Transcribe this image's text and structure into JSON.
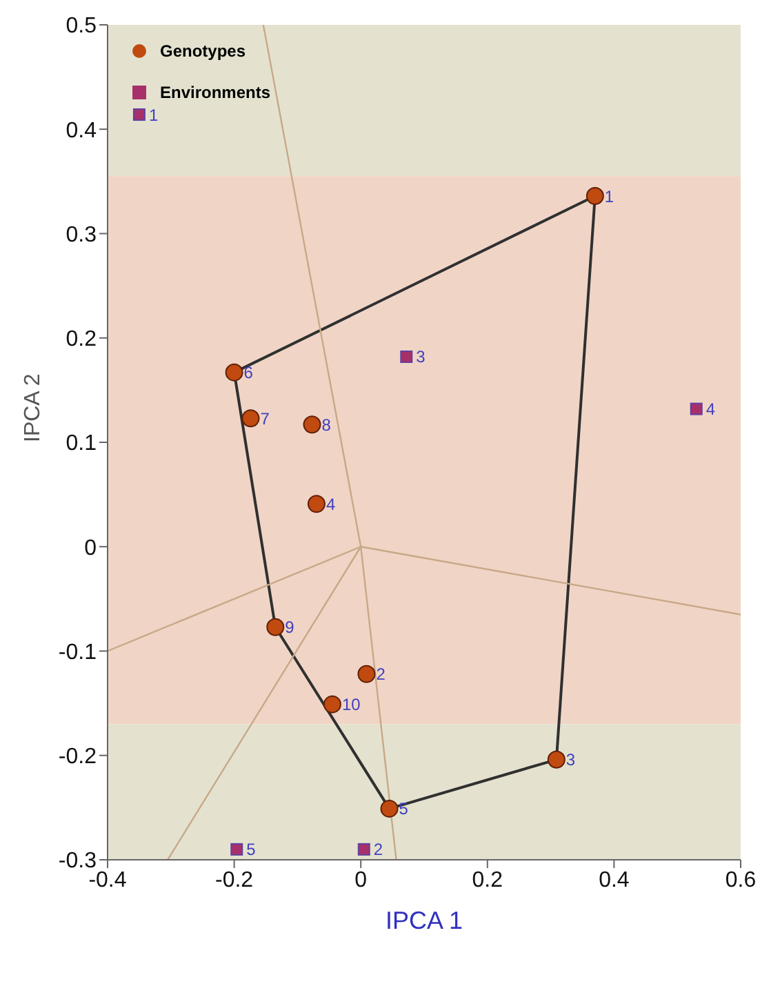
{
  "chart_data": {
    "type": "scatter",
    "xlabel": "IPCA 1",
    "ylabel": "IPCA 2",
    "xlim": [
      -0.4,
      0.6
    ],
    "xticks": [
      -0.4,
      -0.2,
      0,
      0.2,
      0.4,
      0.6
    ],
    "ylim": [
      -0.3,
      0.5
    ],
    "yticks": [
      -0.3,
      -0.2,
      -0.1,
      0,
      0.1,
      0.2,
      0.3,
      0.4,
      0.5
    ],
    "grid": false,
    "legend": "top left",
    "bands": [
      {
        "axis": "y",
        "from": 0.355,
        "to": 0.5,
        "color": "#e4e2cf"
      },
      {
        "axis": "y",
        "from": -0.17,
        "to": 0.355,
        "color": "#f0d5c6"
      },
      {
        "axis": "y",
        "from": -0.3,
        "to": -0.17,
        "color": "#e4e2cf"
      }
    ],
    "series": [
      {
        "name": "Genotypes",
        "marker": "circle",
        "color": "#c04a10",
        "x": [
          0.37,
          0.009,
          0.309,
          -0.07,
          0.045,
          -0.2,
          -0.174,
          -0.077,
          -0.135,
          -0.045
        ],
        "values": [
          0.336,
          -0.122,
          -0.204,
          0.041,
          -0.251,
          0.167,
          0.123,
          0.117,
          -0.077,
          -0.151
        ]
      },
      {
        "name": "Environments",
        "marker": "square",
        "color": "#a8306a",
        "x": [
          -0.35,
          0.005,
          0.072,
          0.53,
          -0.196
        ],
        "values": [
          0.414,
          -0.29,
          0.182,
          0.132,
          -0.29
        ]
      },
      {
        "type": "line",
        "color": "#303030",
        "marker": "none",
        "x": [
          -0.2,
          0.37
        ],
        "values": [
          0.167,
          0.336
        ]
      },
      {
        "type": "line",
        "color": "#303030",
        "marker": "none",
        "x": [
          -0.2,
          -0.135,
          0.045,
          0.309,
          0.37
        ],
        "values": [
          0.167,
          -0.077,
          -0.251,
          -0.204,
          0.336
        ]
      },
      {
        "type": "line",
        "color": "#c8a888",
        "marker": "none",
        "x": [
          -0.154,
          0,
          0.056
        ],
        "values": [
          0.5,
          0,
          -0.3
        ]
      },
      {
        "type": "line",
        "color": "#c8a888",
        "marker": "none",
        "x": [
          0,
          -0.4
        ],
        "values": [
          0,
          -0.1
        ]
      },
      {
        "type": "line",
        "color": "#c8a888",
        "marker": "none",
        "x": [
          0,
          0.6
        ],
        "values": [
          0,
          -0.065
        ]
      },
      {
        "type": "line",
        "color": "#c8a888",
        "marker": "none",
        "x": [
          0,
          -0.305
        ],
        "values": [
          0,
          -0.3
        ]
      }
    ],
    "annotations": [
      {
        "text": "1",
        "x": 0.37,
        "y": 0.336
      },
      {
        "text": "2",
        "x": 0.009,
        "y": -0.122
      },
      {
        "text": "3",
        "x": 0.309,
        "y": -0.204
      },
      {
        "text": "4",
        "x": -0.07,
        "y": 0.041
      },
      {
        "text": "5",
        "x": 0.045,
        "y": -0.251
      },
      {
        "text": "6",
        "x": -0.2,
        "y": 0.167
      },
      {
        "text": "7",
        "x": -0.174,
        "y": 0.123
      },
      {
        "text": "8",
        "x": -0.077,
        "y": 0.117
      },
      {
        "text": "9",
        "x": -0.135,
        "y": -0.077
      },
      {
        "text": "10",
        "x": -0.045,
        "y": -0.151
      },
      {
        "text": "1",
        "x": -0.35,
        "y": 0.414
      },
      {
        "text": "2",
        "x": 0.005,
        "y": -0.29
      },
      {
        "text": "3",
        "x": 0.072,
        "y": 0.182
      },
      {
        "text": "4",
        "x": 0.53,
        "y": 0.132
      },
      {
        "text": "5",
        "x": -0.196,
        "y": -0.29
      }
    ]
  }
}
